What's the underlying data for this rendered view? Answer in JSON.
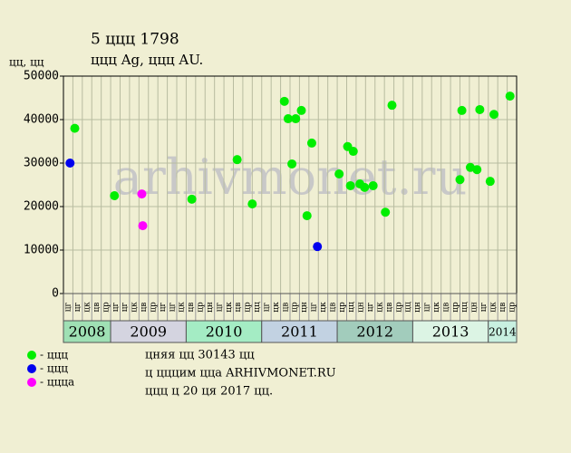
{
  "chart_data": {
    "type": "scatter",
    "title": "5 ццц 1798",
    "subtitle": "ццц Ag, ццц AU.",
    "ylabel": "цц, цц",
    "watermark": "arhivmonet.ru",
    "categories": [
      "цг",
      "цг",
      "цк",
      "цв",
      "цр",
      "цг",
      "цг",
      "цк",
      "цв",
      "цр",
      "цг",
      "цг",
      "цк",
      "цв",
      "цр",
      "цн",
      "цг",
      "цк",
      "цв",
      "цр",
      "цц",
      "цг",
      "цк",
      "цв",
      "цр",
      "цн",
      "цг",
      "цк",
      "цв",
      "цр",
      "цц",
      "цн",
      "цг",
      "цк",
      "цв",
      "цр",
      "цц",
      "цн",
      "цг",
      "цк",
      "цв",
      "цр",
      "цц",
      "цн",
      "цг",
      "цк",
      "цв",
      "цр"
    ],
    "years": [
      "2008",
      "2009",
      "2010",
      "2011",
      "2012",
      "2013",
      "2014"
    ],
    "xlim": [
      0,
      48
    ],
    "ylim": [
      0,
      50000
    ],
    "yticks": [
      0,
      10000,
      20000,
      30000,
      40000,
      50000
    ],
    "grid": true,
    "series": [
      {
        "name": "- ццц",
        "color": "#00ee00",
        "x": [
          1.2,
          5.4,
          13.6,
          18.4,
          20.0,
          23.4,
          23.8,
          24.2,
          24.6,
          25.2,
          25.8,
          26.3,
          29.2,
          30.1,
          30.4,
          30.7,
          31.4,
          31.9,
          32.8,
          34.1,
          34.8,
          42.0,
          42.2,
          43.1,
          43.8,
          44.1,
          45.2,
          45.6,
          47.3
        ],
        "values": [
          38000,
          22500,
          21700,
          30800,
          20600,
          44200,
          40200,
          29800,
          40200,
          42100,
          17900,
          34600,
          27500,
          33800,
          24800,
          32700,
          25200,
          24400,
          24800,
          18700,
          43300,
          26200,
          42100,
          29000,
          28500,
          42300,
          25800,
          41200,
          45400
        ]
      },
      {
        "name": "- ццц",
        "color": "#0000ee",
        "x": [
          0.7,
          26.9
        ],
        "values": [
          30000,
          10800
        ]
      },
      {
        "name": "- ццца",
        "color": "#ff00ff",
        "x": [
          8.3,
          8.4
        ],
        "values": [
          22900,
          15600
        ]
      }
    ],
    "notes": [
      "цняя цц 30143 цц",
      "ц цццим цца ARHIVMONET.RU",
      "ццц ц 20 ця 2017 цц."
    ]
  }
}
